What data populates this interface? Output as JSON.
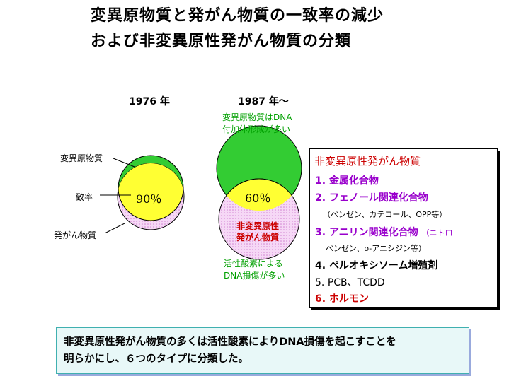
{
  "title": {
    "line1": "変異原物質と発がん物質の一致率の減少",
    "line2": "および非変異原性発がん物質の分類"
  },
  "left_venn": {
    "year": "1976 年",
    "label_top": "変異原物質",
    "label_mid": "一致率",
    "label_bottom": "発がん物質",
    "overlap_pct": "90％"
  },
  "right_venn": {
    "year": "1987 年～",
    "note_top_line1": "変異原物質はDNA",
    "note_top_line2": "付加体形成が多い",
    "overlap_pct": "60％",
    "lower_label_line1": "非変異原性",
    "lower_label_line2": "発がん物質",
    "note_bottom_line1": "活性酸素による",
    "note_bottom_line2": "DNA損傷が多い"
  },
  "panel": {
    "title": "非変異原性発がん物質",
    "items": [
      {
        "num": "1.",
        "text": "金属化合物",
        "color": "#9900cc"
      },
      {
        "num": "2.",
        "text": "フェノール関連化合物",
        "color": "#9900cc"
      },
      {
        "num": "3.",
        "text": "アニリン関連化合物",
        "color": "#9900cc"
      },
      {
        "num": "4.",
        "text": "ペルオキシソーム増殖剤",
        "color": "#000000"
      },
      {
        "num": "5.",
        "text": "PCB、TCDD",
        "color": "#000000"
      },
      {
        "num": "6.",
        "text": "ホルモン",
        "color": "#cc0000"
      }
    ],
    "sub2": "（ベンゼン、カテコール、OPP等）",
    "sub3a": "（ニトロ",
    "sub3b": "ベンゼン、o-アニシジン等）"
  },
  "bottom": {
    "line1": "非変異原性発がん物質の多くは活性酸素によりDNA損傷を起こすことを",
    "line2": "明らかにし、６つのタイプに分類した。"
  },
  "colors": {
    "green": "#33cc33",
    "yellow": "#ffff33",
    "pink": "#f0c0f0",
    "magenta": "#9900cc",
    "red": "#cc0000"
  }
}
